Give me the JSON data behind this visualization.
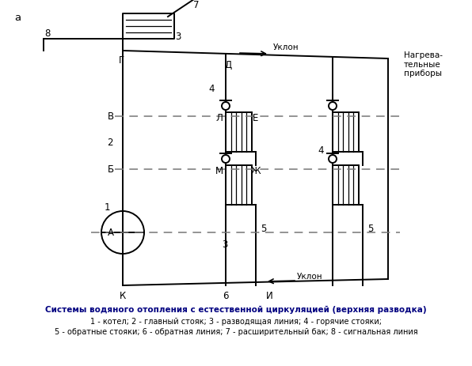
{
  "title_line1": "Системы водяного отопления с естественной циркуляцией (верхняя разводка)",
  "title_line2": "1 - котел; 2 - главный стояк; 3 - разводящая линия; 4 - горячие стояки;",
  "title_line3": "5 - обратные стояки; 6 - обратная линия; 7 - расширительный бак; 8 - сигнальная линия",
  "label_a": "а",
  "label_8": "8",
  "label_7": "7",
  "label_3_top": "3",
  "label_G": "Г",
  "label_D": "Д",
  "label_uklon_top": "Уклон",
  "label_nagrev": "Нагрева-\nтельные\nприборы",
  "label_4_left": "4",
  "label_4_right": "4",
  "label_L": "Л",
  "label_E": "Е",
  "label_V": "В",
  "label_2": "2",
  "label_B": "Б",
  "label_M": "М",
  "label_Zh": "Ж",
  "label_1": "1",
  "label_A": "А",
  "label_3_mid": "3",
  "label_5_left": "5",
  "label_5_right": "5",
  "label_K": "К",
  "label_6": "6",
  "label_I": "И",
  "label_uklon_bot": "Уклон",
  "bg_color": "#ffffff",
  "line_color": "#000000",
  "dashed_color": "#777777",
  "bold_title_color": "#000080"
}
